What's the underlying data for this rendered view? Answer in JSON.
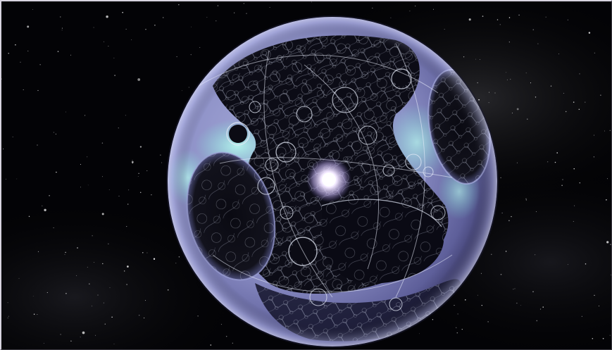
{
  "image": {
    "subject": "sphere-megastructure",
    "palette": {
      "space": "#030306",
      "sphere_light": "#b9bde4",
      "sphere_mid": "#7f82b9",
      "sphere_dark": "#32305c",
      "cyan_glow": "#a8ffee",
      "lattice": "#dfe6f5",
      "star_core": "#f6f0ff"
    }
  }
}
